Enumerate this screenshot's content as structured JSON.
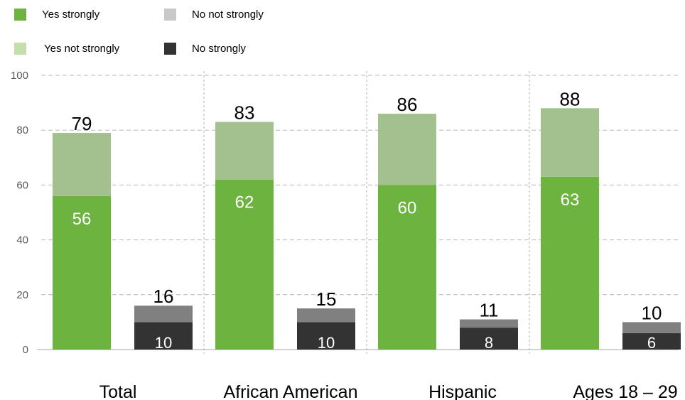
{
  "chart_data": {
    "type": "bar",
    "stacked": true,
    "categories": [
      "Total",
      "African American",
      "Hispanic",
      "Ages 18 – 29"
    ],
    "groups": [
      {
        "name": "Yes",
        "series": [
          {
            "name": "Yes strongly",
            "values": [
              56,
              62,
              60,
              63
            ],
            "color": "#6db33f"
          },
          {
            "name": "Yes not strongly",
            "values": [
              23,
              21,
              26,
              25
            ],
            "color": "#a3c18f"
          }
        ],
        "totals": [
          79,
          83,
          86,
          88
        ]
      },
      {
        "name": "No",
        "series": [
          {
            "name": "No strongly",
            "values": [
              10,
              10,
              8,
              6
            ],
            "color": "#333333"
          },
          {
            "name": "No not strongly",
            "values": [
              6,
              5,
              3,
              4
            ],
            "color": "#808080"
          }
        ],
        "totals": [
          16,
          15,
          11,
          10
        ]
      }
    ],
    "y_ticks": [
      0,
      20,
      40,
      60,
      80,
      100
    ],
    "ylim": [
      0,
      100
    ],
    "grid": true,
    "legend_position": "top-left"
  },
  "legend": [
    {
      "label": "Yes strongly",
      "color": "#6db33f"
    },
    {
      "label": "No not strongly",
      "color": "#c8c8c8"
    },
    {
      "label": "Yes not strongly",
      "color": "#c3e0ac"
    },
    {
      "label": "No strongly",
      "color": "#333333"
    }
  ],
  "colors": {
    "axis_text": "#595959",
    "grid": "#b7b7b7",
    "divider": "#c3a3b3"
  }
}
